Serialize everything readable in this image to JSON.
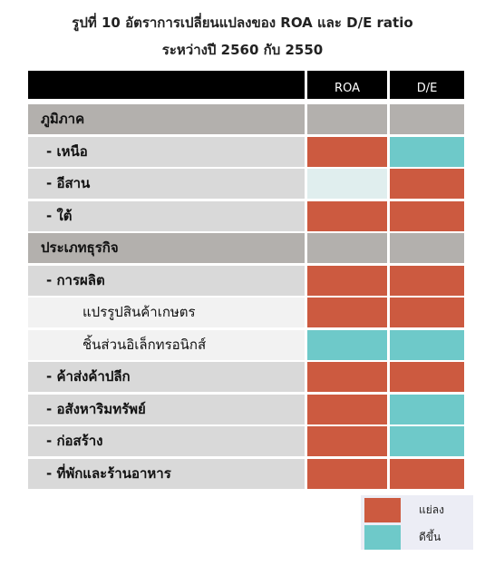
{
  "title_line1": "รูปที่ 10 อัตราการเปลี่ยนแปลงของ ROA และ D/E ratio",
  "title_line2": "ระหว่างปี 2560 กับ 2550",
  "colors": {
    "worse": "#cc5a40",
    "better": "#6ec9c9",
    "unchanged": "#e0eeee",
    "category": "#b3b0ad"
  },
  "columns": {
    "roa": "ROA",
    "de": "D/E"
  },
  "rows": [
    {
      "label": "ภูมิภาค",
      "type": "cat",
      "roa": "category",
      "de": "category"
    },
    {
      "label": "- เหนือ",
      "type": "sub",
      "roa": "worse",
      "de": "better"
    },
    {
      "label": "- อีสาน",
      "type": "sub",
      "roa": "unchanged",
      "de": "worse"
    },
    {
      "label": "- ใต้",
      "type": "sub",
      "roa": "worse",
      "de": "worse"
    },
    {
      "label": "ประเภทธุรกิจ",
      "type": "cat",
      "roa": "category",
      "de": "category"
    },
    {
      "label": "- การผลิต",
      "type": "sub",
      "roa": "worse",
      "de": "worse"
    },
    {
      "label": "แปรรูปสินค้าเกษตร",
      "type": "sub2",
      "roa": "worse",
      "de": "worse"
    },
    {
      "label": "ชิ้นส่วนอิเล็กทรอนิกส์",
      "type": "sub2",
      "roa": "better",
      "de": "better"
    },
    {
      "label": "- ค้าส่งค้าปลีก",
      "type": "sub",
      "roa": "worse",
      "de": "worse"
    },
    {
      "label": "- อสังหาริมทรัพย์",
      "type": "sub",
      "roa": "worse",
      "de": "better"
    },
    {
      "label": "- ก่อสร้าง",
      "type": "sub",
      "roa": "worse",
      "de": "better"
    },
    {
      "label": "- ที่พักและร้านอาหาร",
      "type": "sub",
      "roa": "worse",
      "de": "worse"
    }
  ],
  "legend": {
    "worse": "แย่ลง",
    "better": "ดีขึ้น"
  }
}
